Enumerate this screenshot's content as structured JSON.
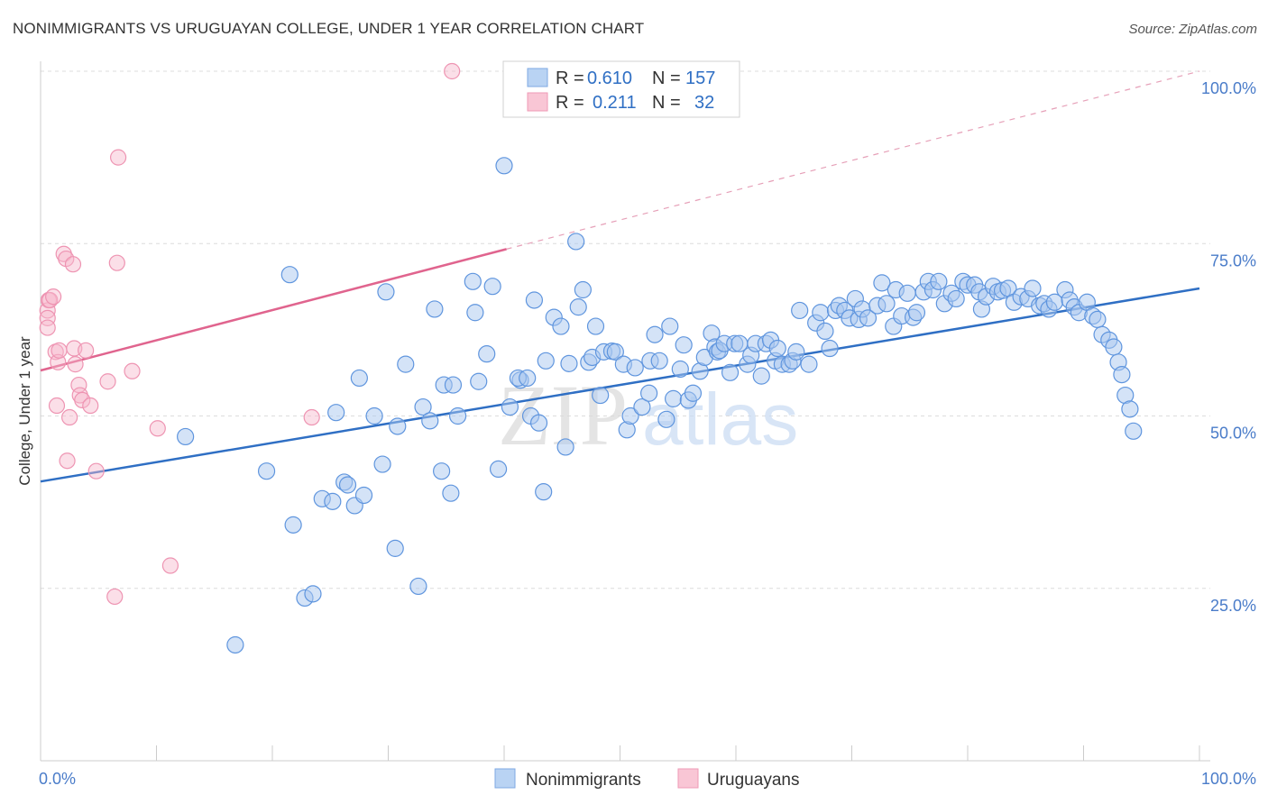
{
  "header": {
    "title": "NONIMMIGRANTS VS URUGUAYAN COLLEGE, UNDER 1 YEAR CORRELATION CHART",
    "source": "Source: ZipAtlas.com"
  },
  "legend": {
    "r_label": "R =",
    "n_label": "N =",
    "entries": [
      {
        "r": "0.610",
        "n": "157",
        "color": "#aac8f0"
      },
      {
        "r": "0.211",
        "n": "32",
        "color": "#f6b8cb"
      }
    ]
  },
  "watermark": {
    "zip": "ZIP",
    "atlas": "atlas"
  },
  "chart_data": {
    "type": "scatter",
    "xlabel": "",
    "ylabel": "College, Under 1 year",
    "xlim": [
      0,
      100
    ],
    "ylim": [
      0,
      100
    ],
    "x_tick_labels": [
      "0.0%",
      "100.0%"
    ],
    "y_tick_labels": [
      "25.0%",
      "50.0%",
      "75.0%",
      "100.0%"
    ],
    "y_ticks": [
      25,
      50,
      75,
      100
    ],
    "grid": true,
    "legend_position": "top-center",
    "colors": {
      "blue": "#6fa3e6",
      "blue_line": "#2f6fc4",
      "pink": "#f09bb6",
      "pink_line": "#e0648e"
    },
    "series": [
      {
        "name": "Nonimmigrants",
        "trend": {
          "x0": 0,
          "y0": 40.5,
          "x1": 100,
          "y1": 68.5
        },
        "points": [
          [
            12.5,
            47
          ],
          [
            16.8,
            16.8
          ],
          [
            19.5,
            42
          ],
          [
            21.5,
            70.5
          ],
          [
            21.8,
            34.2
          ],
          [
            22.8,
            23.6
          ],
          [
            23.5,
            24.2
          ],
          [
            24.3,
            38
          ],
          [
            25.2,
            37.6
          ],
          [
            25.5,
            50.5
          ],
          [
            26.2,
            40.4
          ],
          [
            26.5,
            40
          ],
          [
            27.1,
            37
          ],
          [
            27.5,
            55.5
          ],
          [
            27.9,
            38.5
          ],
          [
            28.8,
            50
          ],
          [
            29.5,
            43
          ],
          [
            29.8,
            68
          ],
          [
            30.6,
            30.8
          ],
          [
            30.8,
            48.5
          ],
          [
            31.5,
            57.5
          ],
          [
            32.6,
            25.3
          ],
          [
            33,
            51.3
          ],
          [
            33.6,
            49.3
          ],
          [
            34,
            65.5
          ],
          [
            34.6,
            42
          ],
          [
            34.8,
            54.5
          ],
          [
            35.4,
            38.8
          ],
          [
            35.6,
            54.5
          ],
          [
            36,
            50
          ],
          [
            37.3,
            69.5
          ],
          [
            37.5,
            65
          ],
          [
            37.8,
            55
          ],
          [
            38.5,
            59
          ],
          [
            39,
            68.8
          ],
          [
            39.5,
            42.3
          ],
          [
            40,
            86.3
          ],
          [
            40.5,
            51.3
          ],
          [
            41.4,
            55.2
          ],
          [
            41.2,
            55.5
          ],
          [
            42,
            55.5
          ],
          [
            42.6,
            66.8
          ],
          [
            42.3,
            50
          ],
          [
            43,
            49
          ],
          [
            43.4,
            39
          ],
          [
            43.6,
            58
          ],
          [
            44.3,
            64.3
          ],
          [
            44.9,
            63
          ],
          [
            45.3,
            45.5
          ],
          [
            45.6,
            57.6
          ],
          [
            46.2,
            75.3
          ],
          [
            46.4,
            65.8
          ],
          [
            46.8,
            68.3
          ],
          [
            47.3,
            57.8
          ],
          [
            47.6,
            58.5
          ],
          [
            47.9,
            63
          ],
          [
            48.3,
            53
          ],
          [
            48.6,
            59.3
          ],
          [
            49.3,
            59.4
          ],
          [
            49.6,
            59.3
          ],
          [
            50.3,
            57.5
          ],
          [
            50.6,
            48
          ],
          [
            50.9,
            50
          ],
          [
            51.3,
            57
          ],
          [
            51.9,
            51.3
          ],
          [
            52.5,
            53.3
          ],
          [
            52.6,
            58
          ],
          [
            53,
            61.8
          ],
          [
            53.4,
            58
          ],
          [
            54,
            49.5
          ],
          [
            54.3,
            63
          ],
          [
            54.6,
            52.5
          ],
          [
            55.2,
            56.8
          ],
          [
            55.5,
            60.3
          ],
          [
            55.9,
            52.3
          ],
          [
            56.3,
            53.3
          ],
          [
            56.9,
            56.5
          ],
          [
            57.3,
            58.5
          ],
          [
            57.9,
            62
          ],
          [
            58.2,
            60
          ],
          [
            58.4,
            59.3
          ],
          [
            58.6,
            59.5
          ],
          [
            59,
            60.5
          ],
          [
            59.5,
            56.3
          ],
          [
            59.9,
            60.5
          ],
          [
            60.3,
            60.5
          ],
          [
            61,
            57.5
          ],
          [
            61.3,
            58.8
          ],
          [
            61.7,
            60.5
          ],
          [
            62.2,
            55.8
          ],
          [
            62.6,
            60.5
          ],
          [
            63,
            61
          ],
          [
            63.4,
            58
          ],
          [
            63.6,
            59.8
          ],
          [
            64,
            57.5
          ],
          [
            64.6,
            57.5
          ],
          [
            64.9,
            58
          ],
          [
            65.2,
            59.3
          ],
          [
            65.5,
            65.3
          ],
          [
            66.3,
            57.5
          ],
          [
            66.9,
            63.5
          ],
          [
            67.3,
            65
          ],
          [
            67.7,
            62.3
          ],
          [
            68.1,
            59.8
          ],
          [
            68.6,
            65.3
          ],
          [
            68.9,
            66
          ],
          [
            69.4,
            65.3
          ],
          [
            69.8,
            64.2
          ],
          [
            70.3,
            67
          ],
          [
            70.6,
            64
          ],
          [
            70.9,
            65.5
          ],
          [
            71.4,
            64.2
          ],
          [
            72.2,
            66
          ],
          [
            72.6,
            69.3
          ],
          [
            73,
            66.3
          ],
          [
            73.6,
            63
          ],
          [
            73.8,
            68.3
          ],
          [
            74.3,
            64.5
          ],
          [
            74.8,
            67.8
          ],
          [
            75.3,
            64.3
          ],
          [
            75.6,
            65
          ],
          [
            76.2,
            68
          ],
          [
            76.6,
            69.5
          ],
          [
            77,
            68.3
          ],
          [
            77.5,
            69.5
          ],
          [
            78,
            66.3
          ],
          [
            78.6,
            67.8
          ],
          [
            79,
            67
          ],
          [
            79.6,
            69.5
          ],
          [
            80,
            69
          ],
          [
            80.6,
            69
          ],
          [
            81,
            68
          ],
          [
            81.2,
            65.5
          ],
          [
            81.6,
            67.3
          ],
          [
            82.2,
            68.8
          ],
          [
            82.6,
            68
          ],
          [
            83,
            68.2
          ],
          [
            83.5,
            68.5
          ],
          [
            84,
            66.5
          ],
          [
            84.6,
            67.3
          ],
          [
            85.2,
            67
          ],
          [
            85.6,
            68.5
          ],
          [
            86.2,
            66
          ],
          [
            86.6,
            66.3
          ],
          [
            87,
            65.5
          ],
          [
            87.5,
            66.5
          ],
          [
            88.4,
            68.3
          ],
          [
            88.8,
            66.8
          ],
          [
            89.2,
            65.8
          ],
          [
            89.6,
            65
          ],
          [
            90.3,
            66.5
          ],
          [
            90.8,
            64.5
          ],
          [
            91.2,
            64
          ],
          [
            91.6,
            61.8
          ],
          [
            92.2,
            61
          ],
          [
            92.6,
            60
          ],
          [
            93,
            57.8
          ],
          [
            93.3,
            56
          ],
          [
            93.6,
            53
          ],
          [
            94,
            51
          ],
          [
            94.3,
            47.8
          ]
        ]
      },
      {
        "name": "Uruguayans",
        "trend": {
          "x0": 0,
          "y0": 56.6,
          "x1": 40.2,
          "y1": 74.2
        },
        "trend_extension": {
          "x0": 40.2,
          "y0": 74.2,
          "x1": 100,
          "y1": 100
        },
        "points": [
          [
            0.6,
            65.3
          ],
          [
            0.7,
            66.8
          ],
          [
            0.6,
            64.2
          ],
          [
            0.6,
            62.8
          ],
          [
            0.8,
            66.8
          ],
          [
            1.1,
            67.3
          ],
          [
            1.3,
            59.3
          ],
          [
            1.4,
            51.5
          ],
          [
            1.5,
            57.8
          ],
          [
            1.6,
            59.5
          ],
          [
            2,
            73.5
          ],
          [
            2.2,
            72.8
          ],
          [
            2.3,
            43.5
          ],
          [
            2.5,
            49.8
          ],
          [
            2.8,
            72
          ],
          [
            2.9,
            59.8
          ],
          [
            3,
            57.5
          ],
          [
            3.3,
            54.5
          ],
          [
            3.4,
            53
          ],
          [
            3.6,
            52.3
          ],
          [
            3.9,
            59.5
          ],
          [
            4.3,
            51.5
          ],
          [
            4.8,
            42
          ],
          [
            5.8,
            55
          ],
          [
            6.4,
            23.8
          ],
          [
            6.6,
            72.2
          ],
          [
            6.7,
            87.5
          ],
          [
            7.9,
            56.5
          ],
          [
            10.1,
            48.2
          ],
          [
            11.2,
            28.3
          ],
          [
            23.4,
            49.8
          ],
          [
            35.5,
            100
          ]
        ]
      }
    ]
  }
}
